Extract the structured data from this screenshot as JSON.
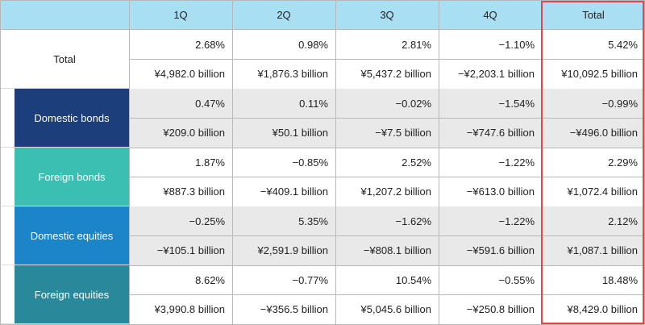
{
  "table": {
    "header": [
      "1Q",
      "2Q",
      "3Q",
      "4Q",
      "Total"
    ],
    "rows": [
      {
        "label": "Total",
        "percent": [
          "2.68%",
          "0.98%",
          "2.81%",
          "−1.10%",
          "5.42%"
        ],
        "amount": [
          "¥4,982.0 billion",
          "¥1,876.3 billion",
          "¥5,437.2 billion",
          "−¥2,203.1 billion",
          "¥10,092.5 billion"
        ]
      },
      {
        "label": "Domestic bonds",
        "percent": [
          "0.47%",
          "0.11%",
          "−0.02%",
          "−1.54%",
          "−0.99%"
        ],
        "amount": [
          "¥209.0 billion",
          "¥50.1 billion",
          "−¥7.5 billion",
          "−¥747.6 billion",
          "−¥496.0 billion"
        ]
      },
      {
        "label": "Foreign bonds",
        "percent": [
          "1.87%",
          "−0.85%",
          "2.52%",
          "−1.22%",
          "2.29%"
        ],
        "amount": [
          "¥887.3 billion",
          "−¥409.1 billion",
          "¥1,207.2 billion",
          "−¥613.0 billion",
          "¥1,072.4 billion"
        ]
      },
      {
        "label": "Domestic equities",
        "percent": [
          "−0.25%",
          "5.35%",
          "−1.62%",
          "−1.22%",
          "2.12%"
        ],
        "amount": [
          "−¥105.1 billion",
          "¥2,591.9 billion",
          "−¥808.1 billion",
          "−¥591.6 billion",
          "¥1,087.1 billion"
        ]
      },
      {
        "label": "Foreign equities",
        "percent": [
          "8.62%",
          "−0.77%",
          "10.54%",
          "−0.55%",
          "18.48%"
        ],
        "amount": [
          "¥3,990.8 billion",
          "−¥356.5 billion",
          "¥5,045.6 billion",
          "−¥250.8 billion",
          "¥8,429.0 billion"
        ]
      }
    ]
  }
}
